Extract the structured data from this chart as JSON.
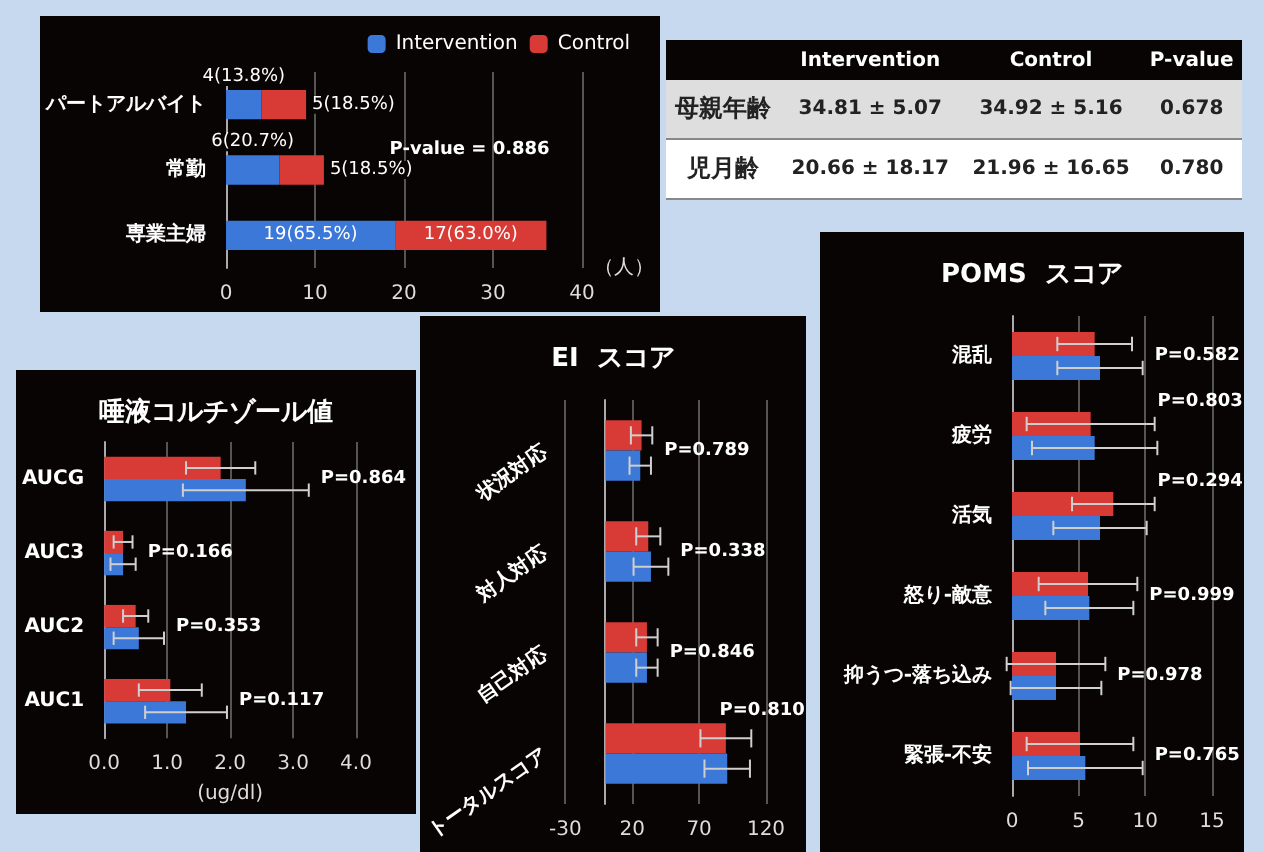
{
  "chart_data": [
    {
      "type": "bar",
      "orientation": "horizontal",
      "stacked": true,
      "categories": [
        "パートアルバイト",
        "常勤",
        "専業主婦"
      ],
      "series": [
        {
          "name": "Intervention",
          "color": "#3b78d8",
          "values": [
            4,
            6,
            19
          ],
          "value_labels": [
            "4(13.8%)",
            "6(20.7%)",
            "19(65.5%)"
          ]
        },
        {
          "name": "Control",
          "color": "#d83a35",
          "values": [
            5,
            5,
            17
          ],
          "value_labels": [
            "5(18.5%)",
            "5(18.5%)",
            "17(63.0%)"
          ]
        }
      ],
      "xlim": [
        0,
        40
      ],
      "xticks": [
        0,
        10,
        20,
        30,
        40
      ],
      "xlabel": "（人）",
      "annotations": [
        "P-value = 0.886"
      ],
      "grid": "x",
      "legend": "top right"
    },
    {
      "type": "other",
      "categories": [
        "Intervention",
        "Control",
        "P-value"
      ],
      "y_categories": [
        "母親年齢",
        "児月齢"
      ],
      "cell_labels": [
        [
          "34.81 ± 5.07",
          "34.92 ± 5.16",
          "0.678"
        ],
        [
          "20.66 ± 18.17",
          "21.96 ± 16.65",
          "0.780"
        ]
      ]
    },
    {
      "type": "bar",
      "orientation": "horizontal",
      "title": "唾液コルチゾール値",
      "categories": [
        "AUCG",
        "AUC3",
        "AUC2",
        "AUC1"
      ],
      "series": [
        {
          "color": "#d83a35",
          "values": [
            1.85,
            0.3,
            0.5,
            1.05
          ],
          "errors": [
            0.55,
            0.15,
            0.2,
            0.5
          ]
        },
        {
          "color": "#3b78d8",
          "values": [
            2.25,
            0.3,
            0.55,
            1.3
          ],
          "errors": [
            1.0,
            0.2,
            0.4,
            0.65
          ]
        }
      ],
      "xlim": [
        0,
        4
      ],
      "xticks": [
        {
          "value": 0,
          "label": "0.0"
        },
        {
          "value": 1,
          "label": "1.0"
        },
        {
          "value": 2,
          "label": "2.0"
        },
        {
          "value": 3,
          "label": "3.0"
        },
        {
          "value": 4,
          "label": "4.0"
        }
      ],
      "xlabel": "(ug/dl)",
      "grid": "x",
      "annotations": [
        "P=0.864",
        "P=0.166",
        "P=0.353",
        "P=0.117"
      ]
    },
    {
      "type": "bar",
      "orientation": "horizontal",
      "title": "EI  スコア",
      "categories": [
        "状況対応",
        "対人対応",
        "自己対応",
        "トータルスコア"
      ],
      "series": [
        {
          "color": "#d83a35",
          "values": [
            27,
            32,
            31,
            90
          ],
          "errors": [
            8,
            9,
            8,
            19
          ]
        },
        {
          "color": "#3b78d8",
          "values": [
            26,
            34,
            31,
            91
          ],
          "errors": [
            8,
            13,
            8,
            17
          ]
        }
      ],
      "xlim": [
        -30,
        120
      ],
      "xticks": [
        -30,
        20,
        70,
        120
      ],
      "grid": "x",
      "annotations": [
        "P=0.789",
        "P=0.338",
        "P=0.846",
        "P=0.810"
      ]
    },
    {
      "type": "bar",
      "orientation": "horizontal",
      "title": "POMS  スコア",
      "categories": [
        "混乱",
        "疲労",
        "活気",
        "怒り-敵意",
        "抑うつ-落ち込み",
        "緊張-不安"
      ],
      "series": [
        {
          "color": "#d83a35",
          "values": [
            6.2,
            5.9,
            7.6,
            5.7,
            3.3,
            5.1
          ],
          "errors": [
            2.8,
            4.8,
            3.1,
            3.7,
            3.7,
            4.0
          ]
        },
        {
          "color": "#3b78d8",
          "values": [
            6.6,
            6.2,
            6.6,
            5.8,
            3.3,
            5.5
          ],
          "errors": [
            3.2,
            4.7,
            3.5,
            3.3,
            3.4,
            4.3
          ]
        }
      ],
      "xlim": [
        0,
        15
      ],
      "xticks": [
        0,
        5,
        10,
        15
      ],
      "grid": "x",
      "annotations": [
        "P=0.582",
        "P=0.803",
        "P=0.294",
        "P=0.999",
        "P=0.978",
        "P=0.765"
      ]
    }
  ]
}
